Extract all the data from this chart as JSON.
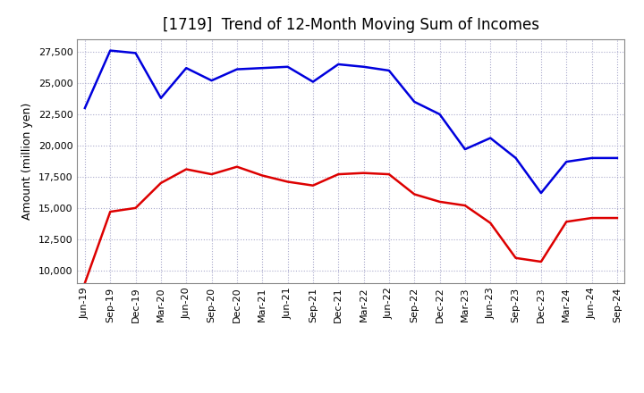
{
  "title": "[1719]  Trend of 12-Month Moving Sum of Incomes",
  "ylabel": "Amount (million yen)",
  "background_color": "#ffffff",
  "plot_bg_color": "#ffffff",
  "grid_color": "#aaaacc",
  "x_labels": [
    "Jun-19",
    "Sep-19",
    "Dec-19",
    "Mar-20",
    "Jun-20",
    "Sep-20",
    "Dec-20",
    "Mar-21",
    "Jun-21",
    "Sep-21",
    "Dec-21",
    "Mar-22",
    "Jun-22",
    "Sep-22",
    "Dec-22",
    "Mar-23",
    "Jun-23",
    "Sep-23",
    "Dec-23",
    "Mar-24",
    "Jun-24",
    "Sep-24"
  ],
  "ordinary_income": [
    23000,
    27600,
    27400,
    23800,
    26200,
    25200,
    26100,
    26200,
    26300,
    25100,
    26500,
    26300,
    26000,
    23500,
    22500,
    19700,
    20600,
    19000,
    16200,
    18700,
    19000,
    19000
  ],
  "net_income": [
    9000,
    14700,
    15000,
    17000,
    18100,
    17700,
    18300,
    17600,
    17100,
    16800,
    17700,
    17800,
    17700,
    16100,
    15500,
    15200,
    13800,
    11000,
    10700,
    13900,
    14200,
    14200
  ],
  "ylim": [
    9000,
    28500
  ],
  "yticks": [
    10000,
    12500,
    15000,
    17500,
    20000,
    22500,
    25000,
    27500
  ],
  "ordinary_color": "#0000dd",
  "net_color": "#dd0000",
  "line_width": 1.8,
  "title_fontsize": 12,
  "legend_fontsize": 10,
  "tick_fontsize": 8,
  "ylabel_fontsize": 9
}
